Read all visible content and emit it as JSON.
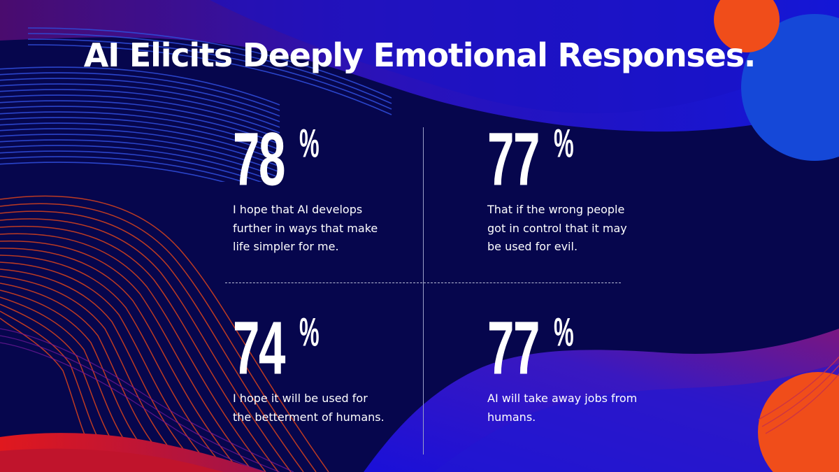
{
  "title": "AI Elicits Deeply Emotional Responses.",
  "colors": {
    "background": "#06064d",
    "accent_orange": "#f04d1a",
    "accent_blue": "#1548d8",
    "accent_red": "#e0181e"
  },
  "stats": [
    {
      "number": "78",
      "unit": "%",
      "text": "I hope that AI develops further in ways that make life simpler for me."
    },
    {
      "number": "77",
      "unit": "%",
      "text": "That if the wrong people got in control that it may be used for evil."
    },
    {
      "number": "74",
      "unit": "%",
      "text": "I hope it will be used for the betterment of humans."
    },
    {
      "number": "77",
      "unit": "%",
      "text": "AI will take away jobs from humans."
    }
  ]
}
